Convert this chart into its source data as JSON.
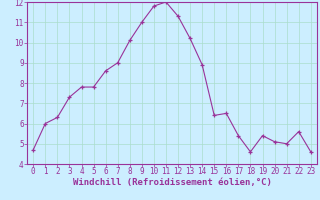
{
  "x": [
    0,
    1,
    2,
    3,
    4,
    5,
    6,
    7,
    8,
    9,
    10,
    11,
    12,
    13,
    14,
    15,
    16,
    17,
    18,
    19,
    20,
    21,
    22,
    23
  ],
  "y": [
    4.7,
    6.0,
    6.3,
    7.3,
    7.8,
    7.8,
    8.6,
    9.0,
    10.1,
    11.0,
    11.8,
    12.0,
    11.3,
    10.2,
    8.9,
    6.4,
    6.5,
    5.4,
    4.6,
    5.4,
    5.1,
    5.0,
    5.6,
    4.6
  ],
  "xlabel": "Windchill (Refroidissement éolien,°C)",
  "ylim": [
    4,
    12
  ],
  "xlim": [
    -0.5,
    23.5
  ],
  "yticks": [
    4,
    5,
    6,
    7,
    8,
    9,
    10,
    11,
    12
  ],
  "xticks": [
    0,
    1,
    2,
    3,
    4,
    5,
    6,
    7,
    8,
    9,
    10,
    11,
    12,
    13,
    14,
    15,
    16,
    17,
    18,
    19,
    20,
    21,
    22,
    23
  ],
  "line_color": "#993399",
  "marker": "+",
  "bg_color": "#cceeff",
  "grid_color": "#aaddcc",
  "text_color": "#993399",
  "spine_color": "#993399",
  "tick_label_size": 5.5,
  "xlabel_size": 6.5
}
